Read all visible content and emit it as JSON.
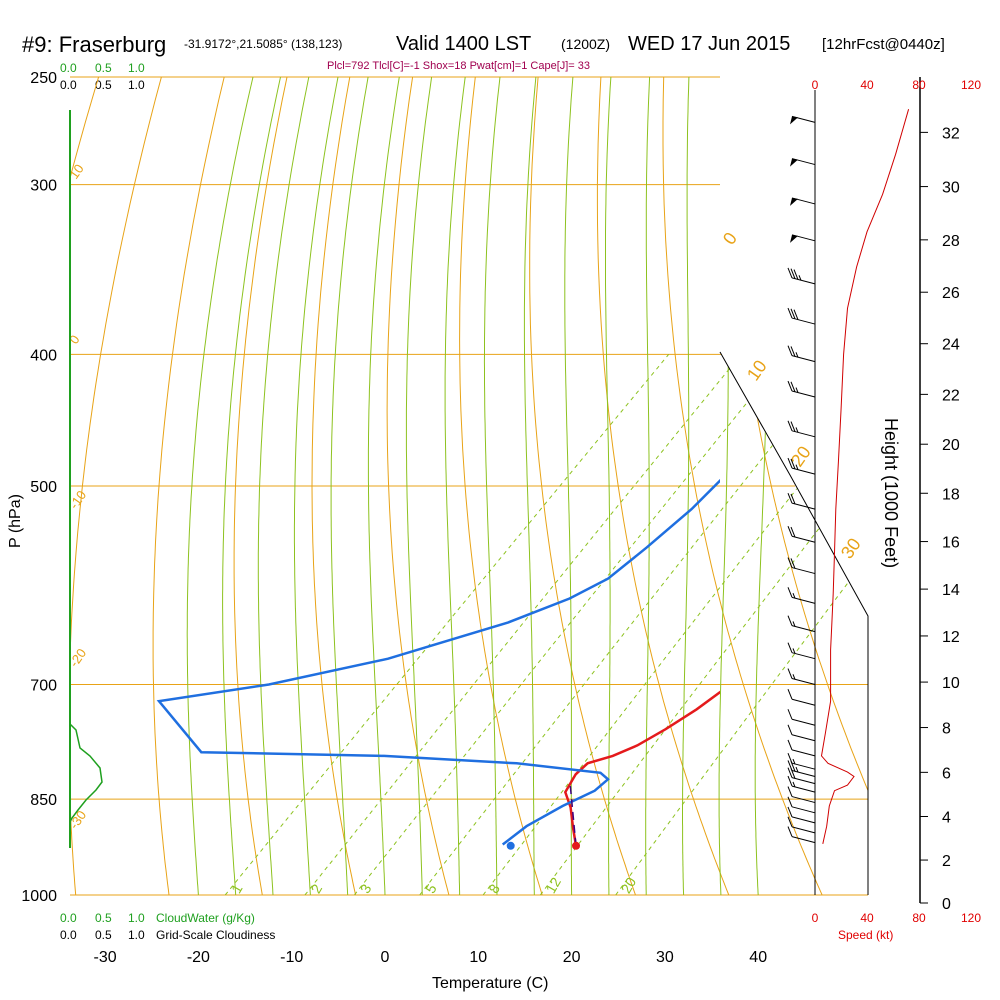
{
  "header": {
    "station": "#9: Fraserburg",
    "coords": "-31.9172°,21.5085° (138,123)",
    "valid": "Valid 1400 LST",
    "zulu": "(1200Z)",
    "date": "WED 17 Jun 2015",
    "forecast": "[12hrFcst@0440z]",
    "indices": "Plcl=792 Tlcl[C]=-1 Shox=18 Pwat[cm]=1 Cape[J]= 33"
  },
  "colors": {
    "isobar": "#e8a317",
    "dry_adiabat": "#e8a317",
    "moist_adiabat": "#8dc21f",
    "mixing_ratio": "#8dc21f",
    "temperature": "#e41a1c",
    "dewpoint": "#1f6fe0",
    "cloud": "#1fa01f",
    "index_text": "#a0004f",
    "speed_axis": "#e00000"
  },
  "chart_data": {
    "type": "line",
    "title": "",
    "xlabel": "Temperature (C)",
    "ylabel": "P (hPa)",
    "right_label": "Height (1000 Feet)",
    "x_range": [
      -35,
      45
    ],
    "y_range_hpa": [
      1000,
      250
    ],
    "log_pressure": true,
    "skew": true,
    "x_ticks": [
      "-30",
      "-20",
      "-10",
      "0",
      "10",
      "20",
      "30",
      "40"
    ],
    "pressure_ticks": [
      "250",
      "300",
      "400",
      "500",
      "700",
      "850",
      "1000"
    ],
    "height_ticks": [
      "0",
      "2",
      "4",
      "6",
      "8",
      "10",
      "12",
      "14",
      "16",
      "18",
      "20",
      "22",
      "24",
      "26",
      "28",
      "30",
      "32"
    ],
    "dry_adiabat_labels": [
      "10",
      "0",
      "-10",
      "-20",
      "-30",
      "0",
      "10",
      "20",
      "30"
    ],
    "mixing_ratio_labels": [
      "1",
      "2",
      "3",
      "5",
      "8",
      "12",
      "20"
    ],
    "cloud_top_axis": [
      "0.0",
      "0.5",
      "1.0"
    ],
    "cloud_top_axis2": [
      "0.0",
      "0.5",
      "1.0"
    ],
    "cloud_bottom_axis": [
      "0.0",
      "0.5",
      "1.0"
    ],
    "cloud_bottom_legend": "CloudWater (g/Kg)",
    "cloud_bottom_axis2": [
      "0.0",
      "0.5",
      "1.0"
    ],
    "cloud_bottom_legend2": "Grid-Scale Cloudiness",
    "speed_ticks": [
      "0",
      "40",
      "80",
      "120"
    ],
    "speed_label": "Speed (kt)",
    "series": [
      {
        "name": "Temperature",
        "points": [
          [
            15.2,
            920
          ],
          [
            13,
            893
          ],
          [
            10.5,
            862
          ],
          [
            8.3,
            840
          ],
          [
            7.5,
            815
          ],
          [
            7.6,
            800
          ],
          [
            9.5,
            790
          ],
          [
            11,
            776
          ],
          [
            12.3,
            755
          ],
          [
            13.5,
            730
          ],
          [
            14.3,
            705
          ],
          [
            15,
            680
          ],
          [
            15.6,
            650
          ],
          [
            16,
            620
          ],
          [
            16.3,
            590
          ],
          [
            16.4,
            565
          ],
          [
            16.2,
            540
          ],
          [
            15.3,
            515
          ],
          [
            14,
            495
          ],
          [
            12,
            470
          ],
          [
            9.5,
            440
          ],
          [
            7,
            412
          ],
          [
            3.5,
            380
          ],
          [
            0,
            350
          ],
          [
            -4,
            320
          ],
          [
            -8,
            295
          ],
          [
            -11,
            278
          ],
          [
            -14,
            264
          ]
        ]
      },
      {
        "name": "Dewpoint",
        "points": [
          [
            7.2,
            918
          ],
          [
            7.8,
            890
          ],
          [
            9.5,
            860
          ],
          [
            11.3,
            838
          ],
          [
            11.5,
            822
          ],
          [
            10,
            813
          ],
          [
            0,
            800
          ],
          [
            -15,
            790
          ],
          [
            -35,
            785
          ],
          [
            -45,
            720
          ],
          [
            -35,
            700
          ],
          [
            -25,
            670
          ],
          [
            -16,
            630
          ],
          [
            -12,
            605
          ],
          [
            -10,
            585
          ],
          [
            -9.2,
            555
          ],
          [
            -8.5,
            520
          ],
          [
            -8.5,
            480
          ],
          [
            -10,
            440
          ],
          [
            -12,
            400
          ],
          [
            -16,
            370
          ],
          [
            -20,
            345
          ],
          [
            -25,
            320
          ],
          [
            -30,
            295
          ],
          [
            -36,
            270
          ],
          [
            -40,
            264
          ]
        ]
      },
      {
        "name": "Parcel",
        "points": [
          [
            15.2,
            920
          ],
          [
            7.9,
            828
          ]
        ]
      }
    ],
    "surface_dewpoint": [
      8.2,
      920
    ],
    "wind_speed_kt": [
      [
        6,
        917
      ],
      [
        9,
        890
      ],
      [
        11,
        860
      ],
      [
        15,
        838
      ],
      [
        25,
        830
      ],
      [
        30,
        818
      ],
      [
        25,
        812
      ],
      [
        10,
        800
      ],
      [
        5,
        790
      ],
      [
        8,
        760
      ],
      [
        12,
        720
      ],
      [
        12,
        700
      ],
      [
        12,
        660
      ],
      [
        13,
        630
      ],
      [
        14,
        600
      ],
      [
        15,
        560
      ],
      [
        16,
        520
      ],
      [
        18,
        480
      ],
      [
        20,
        440
      ],
      [
        22,
        400
      ],
      [
        25,
        370
      ],
      [
        32,
        345
      ],
      [
        40,
        325
      ],
      [
        52,
        305
      ],
      [
        62,
        285
      ],
      [
        72,
        264
      ]
    ],
    "wind_barbs_kt": [
      [
        10,
        915
      ],
      [
        10,
        900
      ],
      [
        10,
        885
      ],
      [
        10,
        870
      ],
      [
        10,
        855
      ],
      [
        15,
        840
      ],
      [
        20,
        828
      ],
      [
        25,
        818
      ],
      [
        15,
        808
      ],
      [
        10,
        790
      ],
      [
        10,
        770
      ],
      [
        10,
        750
      ],
      [
        10,
        725
      ],
      [
        15,
        700
      ],
      [
        15,
        670
      ],
      [
        15,
        640
      ],
      [
        15,
        610
      ],
      [
        20,
        580
      ],
      [
        20,
        550
      ],
      [
        20,
        520
      ],
      [
        25,
        490
      ],
      [
        25,
        460
      ],
      [
        25,
        430
      ],
      [
        25,
        405
      ],
      [
        30,
        380
      ],
      [
        35,
        355
      ],
      [
        50,
        330
      ],
      [
        50,
        310
      ],
      [
        50,
        290
      ],
      [
        50,
        270
      ]
    ]
  }
}
